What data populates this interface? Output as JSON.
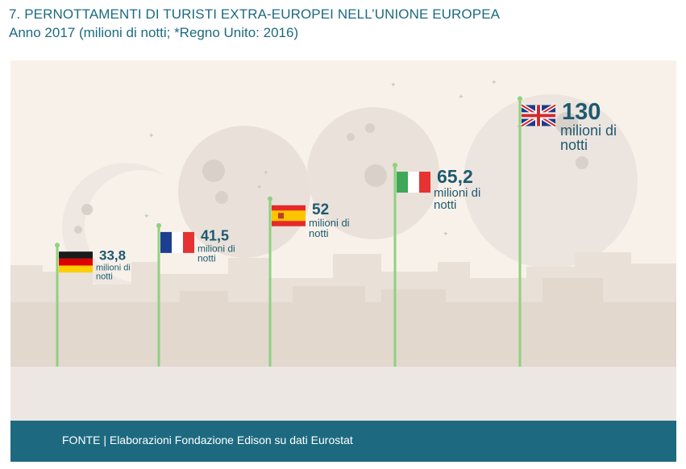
{
  "title": "7. PERNOTTAMENTI DI TURISTI EXTRA-EUROPEI NELL’UNIONE EUROPEA",
  "subtitle": "Anno 2017 (milioni di notti; *Regno Unito: 2016)",
  "footer": "FONTE | Elaborazioni Fondazione Edison su dati Eurostat",
  "colors": {
    "brand": "#1d6a80",
    "label": "#1d5a70",
    "pole": "#8fd17f",
    "background": "#f8f1ea",
    "city": "#e9e0d7",
    "moon": "#eae3dd"
  },
  "chart_data": {
    "type": "bar",
    "title": "7. PERNOTTAMENTI DI TURISTI EXTRA-EUROPEI NELL’UNIONE EUROPEA",
    "subtitle": "Anno 2017 (milioni di notti; *Regno Unito: 2016)",
    "unit": "milioni di notti",
    "ylim": [
      0,
      130
    ],
    "categories": [
      "Germania",
      "Francia",
      "Spagna",
      "Italia",
      "Regno Unito"
    ],
    "flags": [
      "germany-flag",
      "france-flag",
      "spain-flag",
      "italy-flag",
      "uk-flag"
    ],
    "values": [
      33.8,
      41.5,
      52,
      65.2,
      130
    ],
    "value_labels": [
      "33,8",
      "41,5",
      "52",
      "65,2",
      "130"
    ],
    "unit_lines": [
      [
        "milioni di",
        "notti"
      ],
      [
        "milioni di",
        "notti"
      ],
      [
        "milioni di",
        "notti"
      ],
      [
        "milioni di",
        "notti"
      ],
      [
        "milioni di",
        "notti"
      ]
    ]
  }
}
